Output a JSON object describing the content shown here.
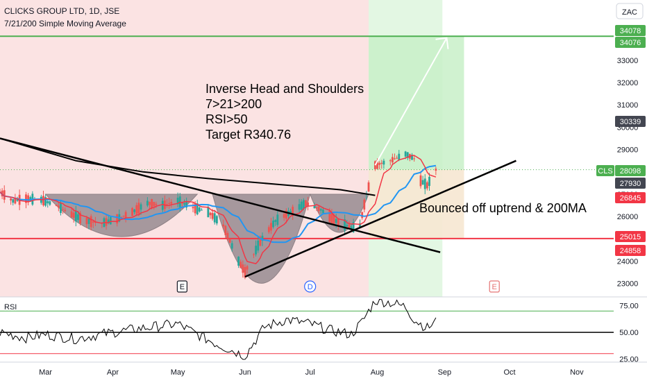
{
  "header": {
    "title": "CLICKS GROUP LTD, 1D, JSE",
    "subtitle": "7/21/200 Simple Moving Average"
  },
  "currency_label": "ZAC",
  "annotations": {
    "pattern_lines": [
      "Inverse Head and Shoulders",
      "7>21>200",
      "RSI>50",
      "Target R340.76"
    ],
    "bounce": "Bounced off uptrend & 200MA"
  },
  "event_markers": [
    {
      "label": "E",
      "date": "2023-05-03",
      "color": "#131722"
    },
    {
      "label": "D",
      "date": "2023-07-01",
      "color": "#2962ff"
    },
    {
      "label": "E",
      "date": "2023-09-24",
      "color": "#e57373"
    }
  ],
  "price_badges": [
    {
      "value": "34078",
      "bg": "#4caf50"
    },
    {
      "value": "34076",
      "bg": "#4caf50"
    },
    {
      "value": "30339",
      "bg": "#434651"
    },
    {
      "value": "28098",
      "bg": "#4caf50",
      "tag": "CLS"
    },
    {
      "value": "27930",
      "bg": "#434651"
    },
    {
      "value": "26845",
      "bg": "#f23645"
    },
    {
      "value": "25015",
      "bg": "#f23645"
    },
    {
      "value": "24858",
      "bg": "#f23645"
    }
  ],
  "colors": {
    "up": "#26a69a",
    "down": "#ef5350",
    "sma7": "#f23645",
    "sma21": "#2196f3",
    "sma200": "#000000",
    "target_line": "#4caf50",
    "support_line": "#f23645",
    "profit_zone": "#c8f0c8",
    "loss_zone": "#fbe3e3"
  },
  "chart_data": [
    {
      "type": "candlestick",
      "title": "CLICKS GROUP LTD, 1D, JSE",
      "y_ticks": [
        23000,
        24000,
        25000,
        26000,
        27000,
        28000,
        29000,
        30000,
        31000,
        32000,
        33000
      ],
      "x_ticks": [
        "Mar",
        "Apr",
        "May",
        "Jun",
        "Jul",
        "Aug",
        "Sep",
        "Oct",
        "Nov"
      ],
      "x_tick_dates": [
        "2023-03-01",
        "2023-04-01",
        "2023-05-01",
        "2023-06-01",
        "2023-07-01",
        "2023-08-01",
        "2023-09-01",
        "2023-10-01",
        "2023-11-01"
      ],
      "ylim": [
        22400,
        35700
      ],
      "x_range": [
        "2023-02-08",
        "2023-11-18"
      ],
      "close_path": [
        [
          "2023-02-08",
          27100
        ],
        [
          "2023-02-14",
          26700
        ],
        [
          "2023-02-20",
          26800
        ],
        [
          "2023-02-27",
          26750
        ],
        [
          "2023-03-06",
          26500
        ],
        [
          "2023-03-13",
          26100
        ],
        [
          "2023-03-20",
          25800
        ],
        [
          "2023-03-27",
          25700
        ],
        [
          "2023-04-03",
          25900
        ],
        [
          "2023-04-10",
          26200
        ],
        [
          "2023-04-17",
          26600
        ],
        [
          "2023-04-24",
          26500
        ],
        [
          "2023-05-01",
          26700
        ],
        [
          "2023-05-08",
          26400
        ],
        [
          "2023-05-15",
          26200
        ],
        [
          "2023-05-22",
          25600
        ],
        [
          "2023-05-29",
          24000
        ],
        [
          "2023-06-01",
          23500
        ],
        [
          "2023-06-08",
          24900
        ],
        [
          "2023-06-15",
          25800
        ],
        [
          "2023-06-22",
          26200
        ],
        [
          "2023-06-29",
          26600
        ],
        [
          "2023-07-06",
          26300
        ],
        [
          "2023-07-13",
          25800
        ],
        [
          "2023-07-20",
          25500
        ],
        [
          "2023-07-24",
          25600
        ],
        [
          "2023-07-27",
          27000
        ],
        [
          "2023-07-31",
          28300
        ],
        [
          "2023-08-07",
          28500
        ],
        [
          "2023-08-14",
          28800
        ],
        [
          "2023-08-18",
          28600
        ],
        [
          "2023-08-21",
          27600
        ],
        [
          "2023-08-24",
          27400
        ],
        [
          "2023-08-28",
          28098
        ]
      ],
      "sma_200": [
        [
          "2023-02-08",
          29500
        ],
        [
          "2023-03-15",
          28500
        ],
        [
          "2023-04-15",
          28000
        ],
        [
          "2023-05-15",
          27700
        ],
        [
          "2023-06-15",
          27450
        ],
        [
          "2023-07-15",
          27200
        ],
        [
          "2023-07-31",
          26950
        ]
      ],
      "levels": [
        34078,
        25015
      ],
      "trendlines": [
        {
          "name": "downtrend",
          "from": [
            "2023-02-08",
            29500
          ],
          "to": [
            "2023-08-30",
            24400
          ]
        },
        {
          "name": "uptrend",
          "from": [
            "2023-06-01",
            23300
          ],
          "to": [
            "2023-10-04",
            28500
          ]
        }
      ],
      "projection_arrow": {
        "from": [
          "2023-07-31",
          28300
        ],
        "to": [
          "2023-09-02",
          34000
        ]
      },
      "zones": {
        "target_box": {
          "from": "2023-07-28",
          "to": "2023-09-10",
          "top": 34076,
          "bottom": 28098
        },
        "stop_box": {
          "from": "2023-07-28",
          "to": "2023-09-10",
          "top": 28098,
          "bottom": 25015
        }
      },
      "shoulder_areas": [
        {
          "name": "left-shoulder",
          "from": "2023-03-01",
          "to": "2023-05-10",
          "top": 27000,
          "bottom": 25000
        },
        {
          "name": "head",
          "from": "2023-05-17",
          "to": "2023-07-01",
          "top": 27000,
          "bottom": 22800
        },
        {
          "name": "right-shoulder",
          "from": "2023-07-01",
          "to": "2023-07-28",
          "top": 27000,
          "bottom": 25200
        }
      ]
    },
    {
      "type": "line",
      "title": "RSI",
      "y_ticks": [
        25,
        50,
        75
      ],
      "ylim": [
        22,
        82
      ],
      "reference_levels": [
        70,
        50,
        30
      ],
      "values": [
        [
          "2023-02-08",
          50
        ],
        [
          "2023-02-20",
          45
        ],
        [
          "2023-03-01",
          48
        ],
        [
          "2023-03-15",
          44
        ],
        [
          "2023-04-01",
          50
        ],
        [
          "2023-04-15",
          54
        ],
        [
          "2023-05-01",
          58
        ],
        [
          "2023-05-10",
          48
        ],
        [
          "2023-05-20",
          38
        ],
        [
          "2023-06-01",
          28
        ],
        [
          "2023-06-10",
          55
        ],
        [
          "2023-06-20",
          62
        ],
        [
          "2023-07-01",
          58
        ],
        [
          "2023-07-10",
          52
        ],
        [
          "2023-07-20",
          48
        ],
        [
          "2023-07-25",
          60
        ],
        [
          "2023-07-31",
          80
        ],
        [
          "2023-08-07",
          78
        ],
        [
          "2023-08-14",
          74
        ],
        [
          "2023-08-18",
          62
        ],
        [
          "2023-08-24",
          54
        ],
        [
          "2023-08-28",
          60
        ]
      ]
    }
  ]
}
